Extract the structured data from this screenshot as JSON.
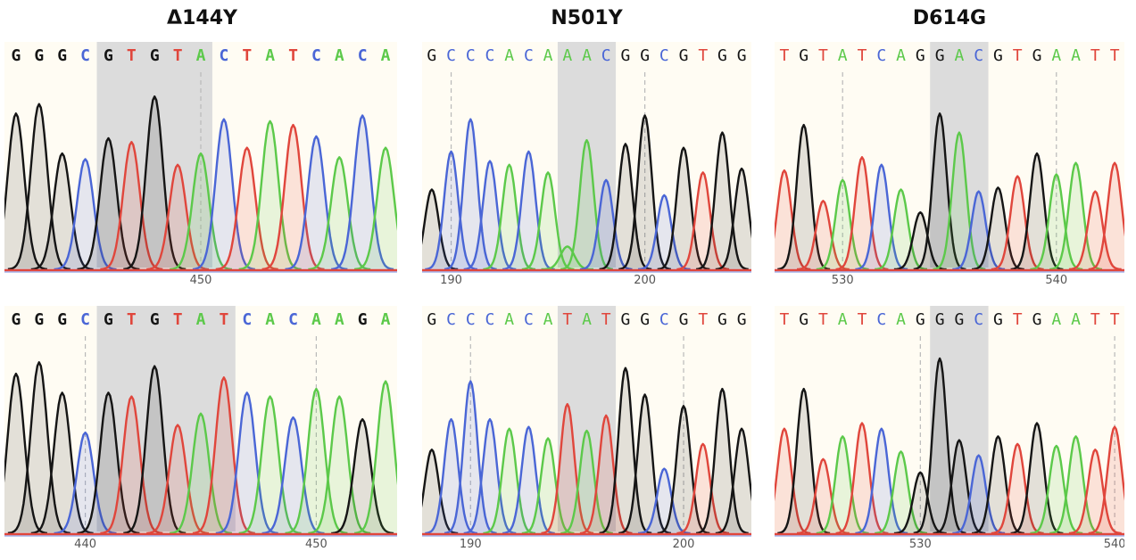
{
  "colors": {
    "A": "#5cc94a",
    "C": "#4a66d6",
    "G": "#151515",
    "T": "#e0463c"
  },
  "columns": [
    {
      "title": "Δ144Y"
    },
    {
      "title": "N501Y"
    },
    {
      "title": "D614G"
    }
  ],
  "chart_data": [
    {
      "type": "chromatogram",
      "id": "d144-top",
      "column": "Δ144Y",
      "sequence": "GGGCGTGTACTATCACA",
      "highlight": [
        4,
        8
      ],
      "ticks": [
        {
          "label": "450",
          "index": 8
        }
      ],
      "heights": [
        0.82,
        0.87,
        0.61,
        0.58,
        0.69,
        0.67,
        0.91,
        0.55,
        0.61,
        0.79,
        0.64,
        0.78,
        0.76,
        0.7,
        0.59,
        0.81,
        0.64
      ]
    },
    {
      "type": "chromatogram",
      "id": "d144-bottom",
      "column": "Δ144Y",
      "sequence": "GGGCGTGTATCACAAGA",
      "highlight": [
        4,
        9
      ],
      "ticks": [
        {
          "label": "440",
          "index": 3
        },
        {
          "label": "450",
          "index": 13
        }
      ],
      "heights": [
        0.84,
        0.9,
        0.74,
        0.53,
        0.74,
        0.72,
        0.88,
        0.57,
        0.63,
        0.82,
        0.74,
        0.72,
        0.61,
        0.76,
        0.72,
        0.6,
        0.8
      ]
    },
    {
      "type": "chromatogram",
      "id": "n501-top",
      "column": "N501Y",
      "sequence": "GCCCACAAACGGCGTGG",
      "highlight": [
        7,
        9
      ],
      "ticks": [
        {
          "label": "190",
          "index": 1
        },
        {
          "label": "200",
          "index": 11
        }
      ],
      "heights": [
        0.42,
        0.62,
        0.79,
        0.57,
        0.55,
        0.62,
        0.51,
        0.12,
        0.68,
        0.47,
        0.66,
        0.81,
        0.39,
        0.64,
        0.51,
        0.72,
        0.53
      ]
    },
    {
      "type": "chromatogram",
      "id": "n501-bottom",
      "column": "N501Y",
      "sequence": "GCCCACATATGGCGTGG",
      "highlight": [
        7,
        9
      ],
      "ticks": [
        {
          "label": "190",
          "index": 2
        },
        {
          "label": "200",
          "index": 13
        }
      ],
      "heights": [
        0.44,
        0.6,
        0.8,
        0.6,
        0.55,
        0.56,
        0.5,
        0.68,
        0.54,
        0.62,
        0.87,
        0.73,
        0.34,
        0.67,
        0.47,
        0.76,
        0.55
      ]
    },
    {
      "type": "chromatogram",
      "id": "d614-top",
      "column": "D614G",
      "sequence": "TGTATCAGGACGTGAATT",
      "highlight": [
        8,
        10
      ],
      "ticks": [
        {
          "label": "530",
          "index": 3
        },
        {
          "label": "540",
          "index": 14
        }
      ],
      "heights": [
        0.52,
        0.76,
        0.36,
        0.47,
        0.59,
        0.55,
        0.42,
        0.3,
        0.82,
        0.72,
        0.41,
        0.43,
        0.49,
        0.61,
        0.5,
        0.56,
        0.41,
        0.56
      ]
    },
    {
      "type": "chromatogram",
      "id": "d614-bottom",
      "column": "D614G",
      "sequence": "TGTATCAGGGCGTGAATT",
      "highlight": [
        8,
        10
      ],
      "ticks": [
        {
          "label": "530",
          "index": 7
        },
        {
          "label": "540",
          "index": 17
        }
      ],
      "heights": [
        0.55,
        0.76,
        0.39,
        0.51,
        0.58,
        0.55,
        0.43,
        0.32,
        0.92,
        0.49,
        0.41,
        0.51,
        0.47,
        0.58,
        0.46,
        0.51,
        0.44,
        0.56
      ]
    }
  ]
}
